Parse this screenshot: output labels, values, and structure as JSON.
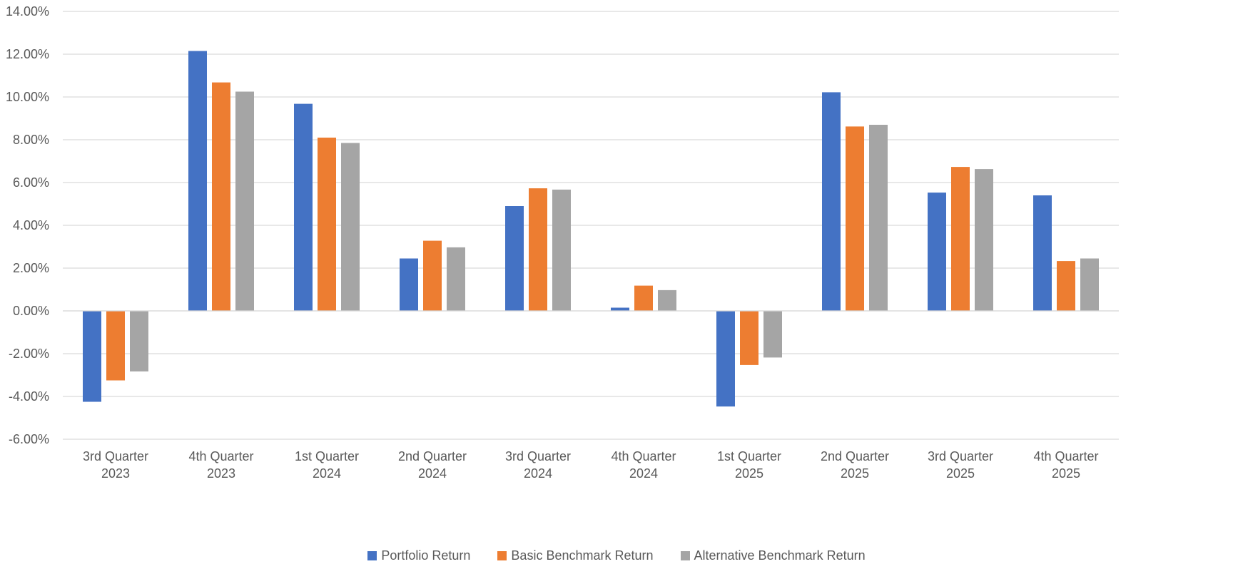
{
  "chart_data": {
    "type": "bar",
    "title": "",
    "xlabel": "",
    "ylabel": "",
    "ylim": [
      -6,
      14
    ],
    "yticks": [
      -6,
      -4,
      -2,
      0,
      2,
      4,
      6,
      8,
      10,
      12,
      14
    ],
    "ytick_format": "percent_2dp",
    "grid": true,
    "legend_position": "bottom",
    "categories": [
      [
        "3rd Quarter",
        "2023"
      ],
      [
        "4th Quarter",
        "2023"
      ],
      [
        "1st Quarter",
        "2024"
      ],
      [
        "2nd Quarter",
        "2024"
      ],
      [
        "3rd Quarter",
        "2024"
      ],
      [
        "4th Quarter",
        "2024"
      ],
      [
        "1st Quarter",
        "2025"
      ],
      [
        "2nd Quarter",
        "2025"
      ],
      [
        "3rd Quarter",
        "2025"
      ],
      [
        "4th Quarter",
        "2025"
      ]
    ],
    "series": [
      {
        "name": "Portfolio Return",
        "color": "#4472C4",
        "values": [
          -4.25,
          12.15,
          9.68,
          2.45,
          4.9,
          0.15,
          -4.47,
          10.22,
          5.53,
          5.4
        ]
      },
      {
        "name": "Basic Benchmark Return",
        "color": "#ED7D31",
        "values": [
          -3.25,
          10.68,
          8.1,
          3.28,
          5.73,
          1.18,
          -2.53,
          8.62,
          6.73,
          2.33
        ]
      },
      {
        "name": "Alternative Benchmark Return",
        "color": "#A5A5A5",
        "values": [
          -2.83,
          10.25,
          7.85,
          2.97,
          5.67,
          0.97,
          -2.18,
          8.7,
          6.63,
          2.45
        ]
      }
    ]
  }
}
